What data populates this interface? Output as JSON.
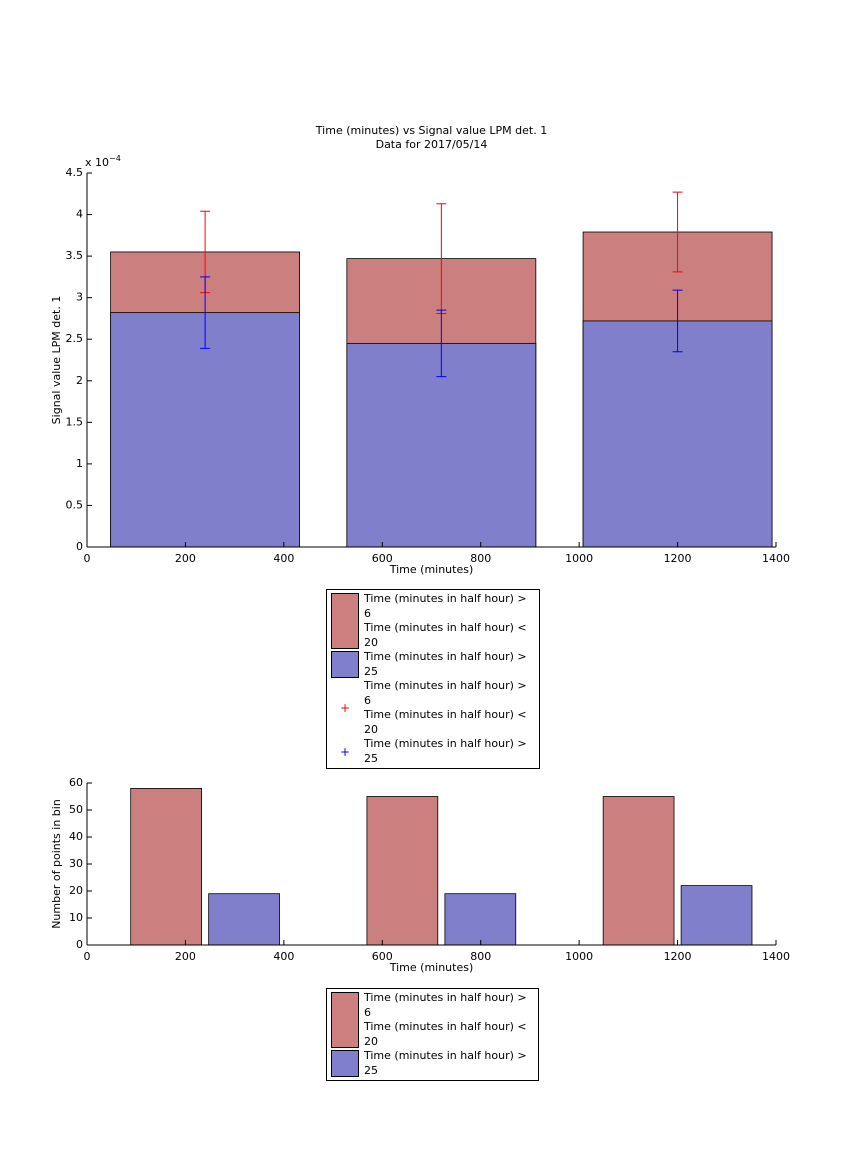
{
  "chart_data": [
    {
      "type": "bar",
      "barmode": "overlay",
      "title": "Time (minutes) vs Signal value LPM det. 1",
      "subtitle": "Data for 2017/05/14",
      "x_label": "Time (minutes)",
      "y_label": "Signal value LPM det. 1",
      "y_multiplier": {
        "base": "x 10",
        "exponent": "−4"
      },
      "x": [
        240,
        720,
        1200
      ],
      "series": [
        {
          "name": "Time (minutes in half hour) > 6\nTime (minutes in half hour) < 20",
          "color": "#cc7f7f",
          "error_color": "#ff0000",
          "values": [
            3.55,
            3.47,
            3.79
          ],
          "errors": [
            0.49,
            0.66,
            0.48
          ]
        },
        {
          "name": "Time (minutes in half hour) > 25",
          "color": "#7f7fcc",
          "error_color": "#0000ff",
          "values": [
            2.82,
            2.45,
            2.72
          ],
          "errors": [
            0.43,
            0.4,
            0.37
          ]
        }
      ],
      "xlim": [
        0,
        1400
      ],
      "xticks": [
        0,
        200,
        400,
        600,
        800,
        1000,
        1200,
        1400
      ],
      "ylim": [
        0,
        4.5
      ],
      "yticks": [
        0,
        0.5,
        1,
        1.5,
        2,
        2.5,
        3,
        3.5,
        4,
        4.5
      ]
    },
    {
      "type": "bar",
      "barmode": "group",
      "x_label": "Time (minutes)",
      "y_label": "Number of points in bin",
      "x": [
        240,
        720,
        1200
      ],
      "series": [
        {
          "name": "Time (minutes in half hour) > 6\nTime (minutes in half hour) < 20",
          "color": "#cc7f7f",
          "values": [
            58,
            55,
            55
          ]
        },
        {
          "name": "Time (minutes in half hour) > 25",
          "color": "#7f7fcc",
          "values": [
            19,
            19,
            22
          ]
        }
      ],
      "xlim": [
        0,
        1400
      ],
      "xticks": [
        0,
        200,
        400,
        600,
        800,
        1000,
        1200,
        1400
      ],
      "ylim": [
        0,
        60
      ],
      "yticks": [
        0,
        10,
        20,
        30,
        40,
        50,
        60
      ]
    }
  ]
}
